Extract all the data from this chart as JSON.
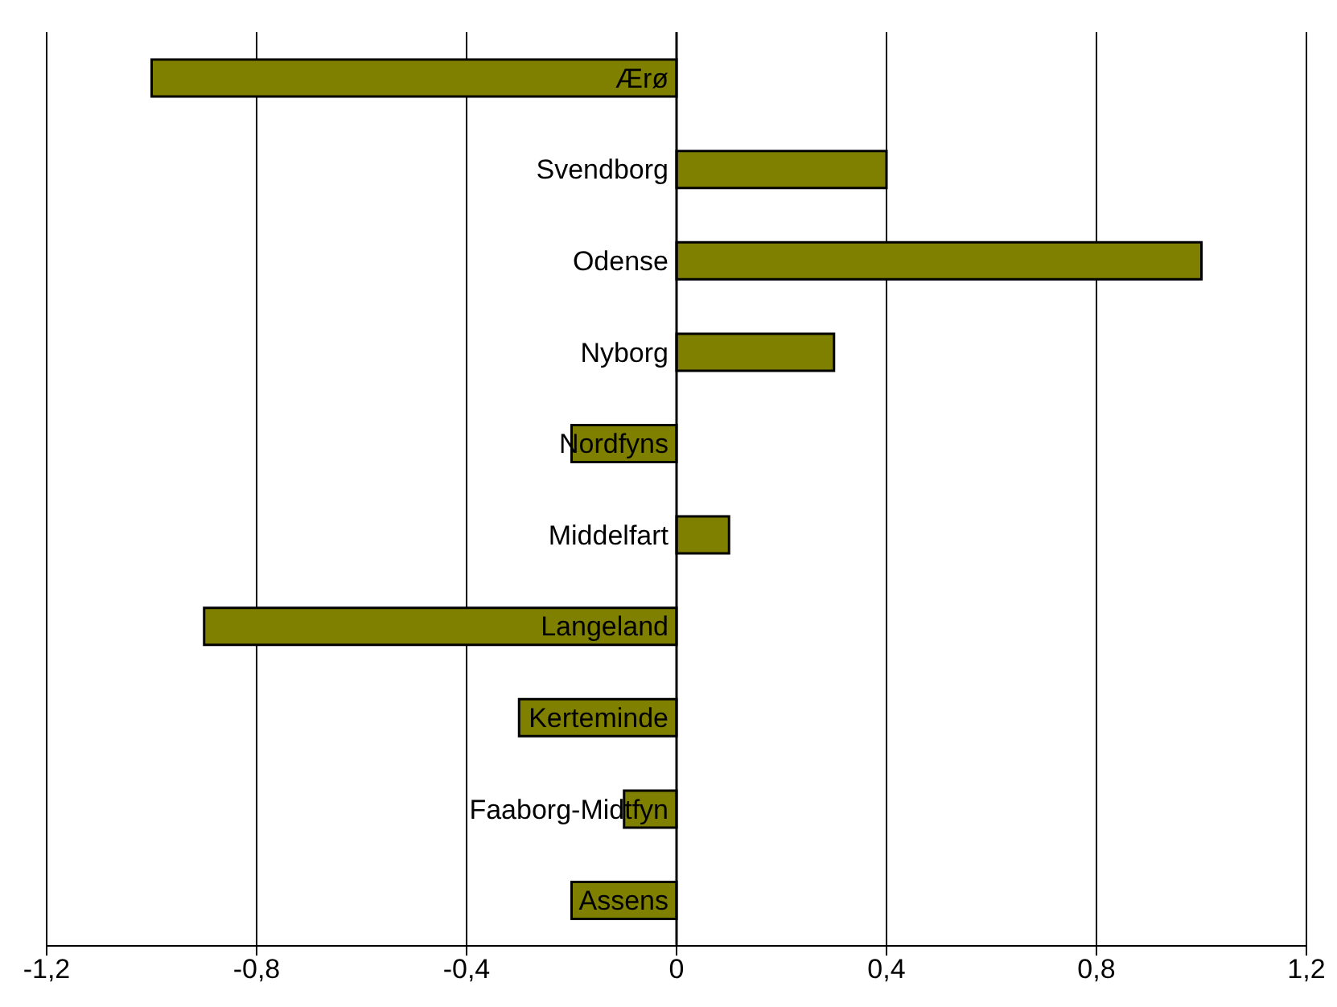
{
  "chart_data": {
    "type": "bar",
    "orientation": "horizontal",
    "categories": [
      "Ærø",
      "Svendborg",
      "Odense",
      "Nyborg",
      "Nordfyns",
      "Middelfart",
      "Langeland",
      "Kerteminde",
      "Faaborg-Midtfyn",
      "Assens"
    ],
    "values": [
      -1.0,
      0.4,
      1.0,
      0.3,
      -0.2,
      0.1,
      -0.9,
      -0.3,
      -0.1,
      -0.2
    ],
    "color": "#808000",
    "xlim": [
      -1.2,
      1.2
    ],
    "xticks": [
      {
        "value": -1.2,
        "label": "-1,2"
      },
      {
        "value": -0.8,
        "label": "-0,8"
      },
      {
        "value": -0.4,
        "label": "-0,4"
      },
      0,
      {
        "value": 0.4,
        "label": "0,4"
      },
      {
        "value": 0.8,
        "label": "0,8"
      },
      {
        "value": 1.2,
        "label": "1,2"
      }
    ],
    "grid": "x"
  }
}
